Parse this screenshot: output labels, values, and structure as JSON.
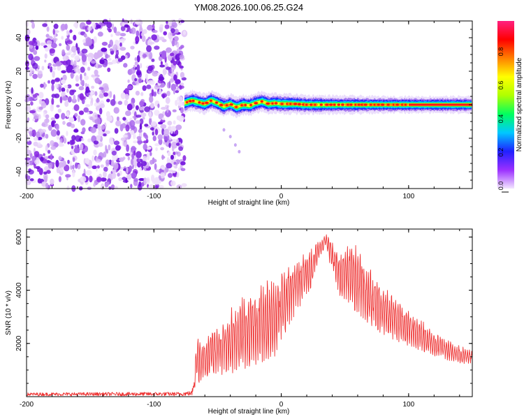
{
  "title": "YM08.2026.100.06.25.G24",
  "chart_data": [
    {
      "type": "heatmap",
      "name": "spectrogram",
      "title": "YM08.2026.100.06.25.G24",
      "xlabel": "Height of straight line (km)",
      "ylabel": "Frequency (Hz)",
      "xlim": [
        -200,
        150
      ],
      "ylim": [
        -50,
        50
      ],
      "xticks": [
        -200,
        -100,
        0,
        100
      ],
      "yticks": [
        -40,
        -20,
        0,
        20,
        40
      ],
      "noise_region_x": [
        -200,
        -76
      ],
      "signal_start_x": -76,
      "signal_peak_frequency": [
        [
          -76,
          1.0
        ],
        [
          -70,
          2.5
        ],
        [
          -65,
          1.5
        ],
        [
          -60,
          0.5
        ],
        [
          -55,
          2.5
        ],
        [
          -50,
          1.0
        ],
        [
          -45,
          -1.0
        ],
        [
          -40,
          0.5
        ],
        [
          -35,
          -1.5
        ],
        [
          -30,
          0.0
        ],
        [
          -25,
          -0.5
        ],
        [
          -20,
          1.0
        ],
        [
          -15,
          2.0
        ],
        [
          -10,
          0.5
        ],
        [
          -5,
          1.0
        ],
        [
          0,
          0.5
        ],
        [
          10,
          0.5
        ],
        [
          20,
          0.0
        ],
        [
          40,
          0.0
        ],
        [
          60,
          0.0
        ],
        [
          80,
          0.0
        ],
        [
          100,
          0.0
        ],
        [
          150,
          0.0
        ]
      ],
      "artifact_points": [
        [
          -45,
          -15
        ],
        [
          -40,
          -19
        ],
        [
          -36,
          -24
        ],
        [
          -33,
          -28
        ]
      ],
      "colorbar": {
        "label": "Normalized spectral amplitude",
        "range": [
          0,
          1
        ],
        "ticks": [
          "0.0",
          "0.2",
          "0.4",
          "0.6",
          "0.8"
        ],
        "colors": [
          "#f3e6ff",
          "#9b30ff",
          "#2020ff",
          "#00c8ff",
          "#00ff60",
          "#b0ff00",
          "#ffff00",
          "#ff8000",
          "#ff0000",
          "#ff2080"
        ]
      }
    },
    {
      "type": "line",
      "name": "snr",
      "xlabel": "Height of straight line (km)",
      "ylabel": "SNR (10 * v/v)",
      "xlim": [
        -200,
        150
      ],
      "ylim": [
        0,
        6300
      ],
      "xticks": [
        -200,
        -100,
        0,
        100
      ],
      "yticks": [
        2000,
        4000,
        6000
      ],
      "color": "#ee3333",
      "envelope": {
        "x": [
          -200,
          -150,
          -100,
          -80,
          -70,
          -66,
          -63,
          -55,
          -45,
          -35,
          -25,
          -15,
          -5,
          5,
          15,
          25,
          30,
          35,
          38,
          42,
          47,
          52,
          56,
          65,
          80,
          100,
          120,
          135,
          150
        ],
        "upper": [
          150,
          160,
          170,
          170,
          220,
          2400,
          2200,
          2500,
          3000,
          3700,
          3900,
          4400,
          4500,
          5000,
          5400,
          5700,
          5900,
          6150,
          6000,
          5800,
          5500,
          5900,
          6100,
          5100,
          4300,
          3300,
          2500,
          2000,
          1800
        ],
        "lower": [
          30,
          30,
          30,
          30,
          40,
          600,
          400,
          900,
          800,
          900,
          1100,
          1300,
          1500,
          2600,
          3400,
          4200,
          5200,
          5700,
          5000,
          4400,
          3600,
          3600,
          3300,
          2900,
          2300,
          1900,
          1500,
          1300,
          1200
        ]
      }
    }
  ]
}
